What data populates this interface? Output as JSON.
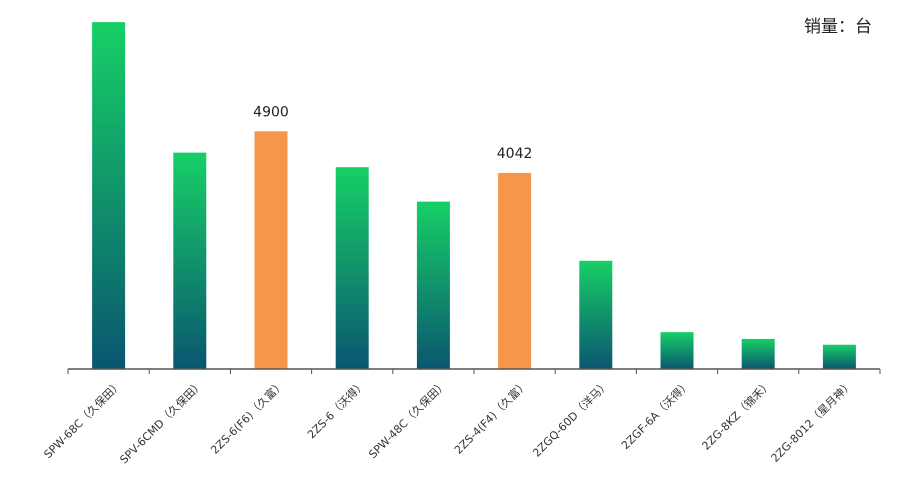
{
  "chart_data": {
    "type": "bar",
    "unit_label": "销量：台",
    "categories": [
      "SPW-68C（久保田）",
      "SPV-6CMD（久保田）",
      "2ZS-6(F6)（久富）",
      "2ZS-6（沃得）",
      "SPW-48C（久保田）",
      "2ZS-4(F4)（久富）",
      "2ZGQ-60D（洋马）",
      "2ZGF-6A（沃得）",
      "2ZG-8KZ（锦禾）",
      "2ZG-8012（星月神）"
    ],
    "values": [
      7150,
      4460,
      4900,
      4160,
      3450,
      4042,
      2230,
      760,
      620,
      500
    ],
    "highlighted": [
      false,
      false,
      true,
      false,
      false,
      true,
      false,
      false,
      false,
      false
    ],
    "data_labels": [
      "",
      "",
      "4900",
      "",
      "",
      "4042",
      "",
      "",
      "",
      ""
    ],
    "ylim": [
      0,
      7400
    ],
    "colors": {
      "gradient_top": "#17cf66",
      "gradient_bottom": "#0a5670",
      "highlight": "#f5964a",
      "axis": "#555555"
    }
  }
}
